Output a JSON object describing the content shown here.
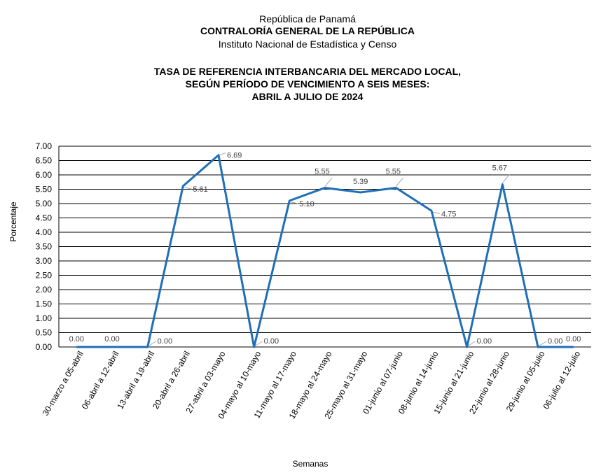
{
  "header": {
    "country": "República de Panamá",
    "agency": "CONTRALORÍA GENERAL DE LA REPÚBLICA",
    "institute": "Instituto  Nacional de Estadística  y  Censo"
  },
  "chart_data": {
    "type": "line",
    "title_lines": [
      "TASA DE REFERENCIA INTERBANCARIA DEL MERCADO LOCAL,",
      "SEGÚN PERÍODO DE VENCIMIENTO A SEIS MESES:",
      "ABRIL A JULIO DE 2024"
    ],
    "xlabel": "Semanas",
    "ylabel": "Porcentaje",
    "ylim": [
      0,
      7
    ],
    "yticks": [
      "0.00",
      "0.50",
      "1.00",
      "1.50",
      "2.00",
      "2.50",
      "3.00",
      "3.50",
      "4.00",
      "4.50",
      "5.00",
      "5.50",
      "6.00",
      "6.50",
      "7.00"
    ],
    "grid": true,
    "categories": [
      "30-marzo a 05-abril",
      "06-abril a 12-abril",
      "13-abril a 19-abril",
      "20-abril a 26-abril",
      "27-abril a 03-mayo",
      "04-mayo al 10-mayo",
      "11-mayo al 17-mayo",
      "18-mayo al 24-mayo",
      "25-mayo al 31-mayo",
      "01-junio al 07-junio",
      "08-junio al 14-junio",
      "15-junio al 21-junio",
      "22-junio al 28-junio",
      "29-junio al 05-julio",
      "06-julio al 12-julio"
    ],
    "values": [
      0.0,
      0.0,
      0.0,
      5.61,
      6.69,
      0.0,
      5.1,
      5.55,
      5.39,
      5.55,
      4.75,
      0.0,
      5.67,
      0.0,
      0.0
    ],
    "data_labels": [
      "0.00",
      "0.00",
      "0.00",
      "5.61",
      "6.69",
      "0.00",
      "5.10",
      "5.55",
      "5.39",
      "5.55",
      "4.75",
      "0.00",
      "5.67",
      "0.00",
      "0.00"
    ],
    "line_color": "#1f6fb8",
    "grid_color": "#000000"
  }
}
